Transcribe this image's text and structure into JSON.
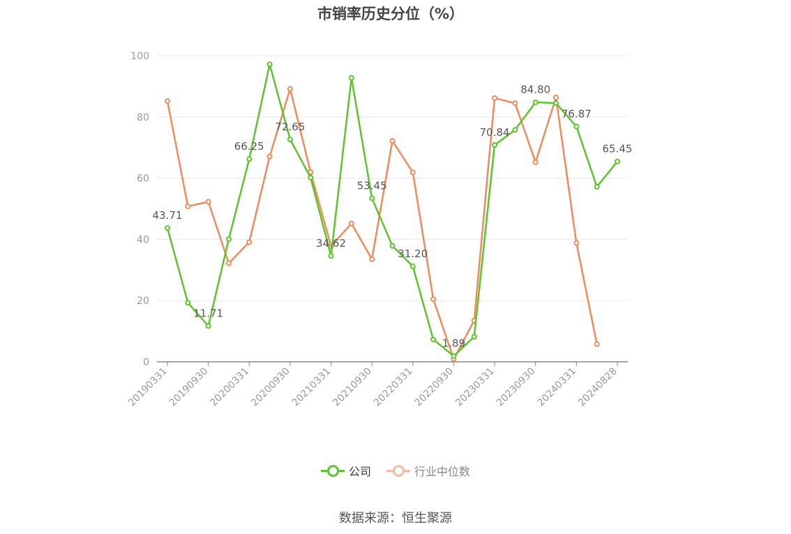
{
  "title": "市销率历史分位（%）",
  "source": "数据来源：恒生聚源",
  "colors": {
    "company": "#5cc42b",
    "industry": "#f08a5a",
    "industry_legend": "#f6bba0"
  },
  "chart_data": {
    "type": "line",
    "title": "市销率历史分位（%）",
    "ylim": [
      0,
      100
    ],
    "yticks": [
      0,
      20,
      40,
      60,
      80,
      100
    ],
    "xtick_labels": [
      "20190331",
      "20190930",
      "20200331",
      "20200930",
      "20210331",
      "20210930",
      "20220331",
      "20220930",
      "20230331",
      "20230930",
      "20240331",
      "20240828"
    ],
    "xtick_index": [
      0,
      2,
      4,
      6,
      8,
      10,
      12,
      14,
      16,
      18,
      20,
      22
    ],
    "x": [
      "20190331",
      "20190630",
      "20190930",
      "20191231",
      "20200331",
      "20200630",
      "20200930",
      "20201231",
      "20210331",
      "20210630",
      "20210930",
      "20211231",
      "20220331",
      "20220630",
      "20220930",
      "20221231",
      "20230331",
      "20230630",
      "20230930",
      "20231231",
      "20240331",
      "20240630",
      "20240828"
    ],
    "grid": true,
    "legend_position": "bottom",
    "series": [
      {
        "name": "公司",
        "values": [
          43.71,
          19.3,
          11.71,
          40.1,
          66.25,
          97.2,
          72.65,
          60.2,
          34.62,
          92.8,
          53.45,
          37.9,
          31.2,
          7.3,
          1.89,
          8.2,
          70.84,
          75.8,
          84.8,
          84.5,
          76.87,
          57.2,
          65.45
        ],
        "data_labels": {
          "0": "43.71",
          "2": "11.71",
          "4": "66.25",
          "6": "72.65",
          "8": "34.62",
          "10": "53.45",
          "12": "31.20",
          "14": "1.89",
          "16": "70.84",
          "18": "84.80",
          "20": "76.87",
          "22": "65.45"
        }
      },
      {
        "name": "行业中位数",
        "values": [
          85.2,
          50.8,
          52.3,
          32.2,
          39.1,
          67.1,
          89.2,
          62.0,
          37.8,
          45.2,
          33.5,
          72.2,
          61.9,
          20.5,
          0.9,
          13.5,
          86.2,
          84.5,
          65.2,
          86.4,
          38.8,
          5.8,
          null
        ]
      }
    ]
  }
}
